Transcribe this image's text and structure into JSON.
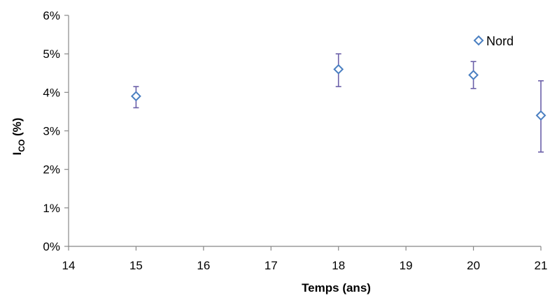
{
  "chart_data": {
    "type": "scatter",
    "title": "",
    "xlabel": "Temps (ans)",
    "ylabel_main": "I",
    "ylabel_sub": "CO",
    "ylabel_suffix": " (%)",
    "xlim": [
      14,
      21
    ],
    "ylim": [
      0,
      6
    ],
    "x_ticks": [
      "14",
      "15",
      "16",
      "17",
      "18",
      "19",
      "20",
      "21"
    ],
    "y_ticks": [
      "0%",
      "1%",
      "2%",
      "3%",
      "4%",
      "5%",
      "6%"
    ],
    "grid": false,
    "legend_position": "top-right",
    "series": [
      {
        "name": "Nord",
        "marker": "diamond",
        "color": "#4a7fc1",
        "errorbar_color": "#6b5fa8",
        "points": [
          {
            "x": 15,
            "y": 3.9,
            "err_low": 3.6,
            "err_high": 4.15
          },
          {
            "x": 18,
            "y": 4.6,
            "err_low": 4.15,
            "err_high": 5.0
          },
          {
            "x": 20,
            "y": 4.45,
            "err_low": 4.1,
            "err_high": 4.8
          },
          {
            "x": 21,
            "y": 3.4,
            "err_low": 2.45,
            "err_high": 4.3
          }
        ]
      }
    ]
  }
}
